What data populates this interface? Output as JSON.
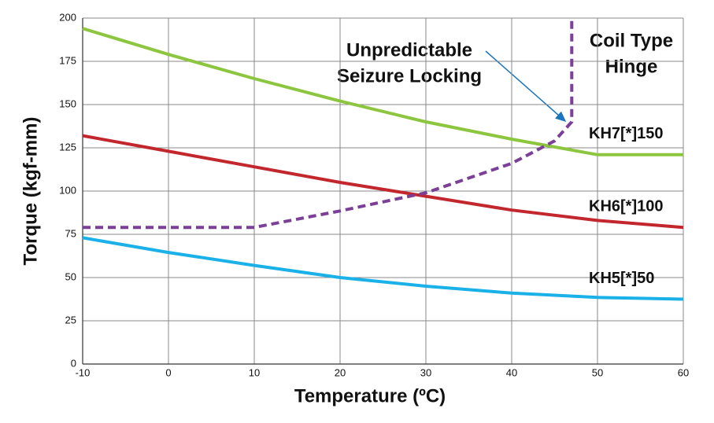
{
  "chart_data": {
    "type": "line",
    "x_label": "Temperature (ºC)",
    "y_label": "Torque (kgf-mm)",
    "x": [
      -10,
      0,
      10,
      20,
      30,
      40,
      50,
      60
    ],
    "xlim": [
      -10,
      60
    ],
    "xticks": [
      -10,
      0,
      10,
      20,
      30,
      40,
      50,
      60
    ],
    "ylim": [
      0,
      200
    ],
    "yticks": [
      0,
      25,
      50,
      75,
      100,
      125,
      150,
      175,
      200
    ],
    "grid": true,
    "series": [
      {
        "name": "KH7[*]150",
        "color": "#8cc63f",
        "values": [
          194,
          179,
          165,
          152,
          140,
          130,
          121,
          121
        ]
      },
      {
        "name": "KH6[*]100",
        "color": "#c1272d",
        "values": [
          132,
          123,
          114,
          105,
          97,
          89,
          83,
          79
        ]
      },
      {
        "name": "KH5[*]50",
        "color": "#1ab0e8",
        "values": [
          73,
          64.5,
          57,
          50,
          45,
          41,
          38.5,
          37.5
        ]
      },
      {
        "color": "#7b3f98",
        "dashed": true,
        "x": [
          -10,
          10,
          20,
          30,
          40,
          45,
          47,
          47
        ],
        "values": [
          79,
          79,
          88.5,
          99,
          116,
          129,
          140,
          200
        ]
      }
    ],
    "annotations": [
      {
        "lines": [
          "Unpredictable",
          "Seizure Locking"
        ]
      },
      {
        "lines": [
          "Coil Type",
          "Hinge"
        ]
      }
    ]
  }
}
